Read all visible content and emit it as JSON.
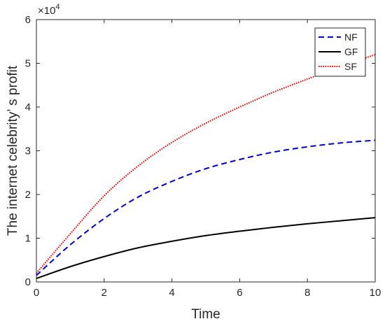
{
  "chart_data": {
    "type": "line",
    "title": "",
    "xlabel": "Time",
    "ylabel": "The internet celebrity’  s profit",
    "xlim": [
      0,
      10
    ],
    "ylim": [
      0,
      60000
    ],
    "x_ticks": [
      0,
      2,
      4,
      6,
      8,
      10
    ],
    "x_tick_labels": [
      "0",
      "2",
      "4",
      "6",
      "8",
      "10"
    ],
    "y_ticks": [
      0,
      10000,
      20000,
      30000,
      40000,
      50000,
      60000
    ],
    "y_tick_labels": [
      "0",
      "1",
      "2",
      "3",
      "4",
      "5",
      "6"
    ],
    "y_exponent_label": "×10",
    "y_exponent_power": "4",
    "grid": false,
    "legend_position": "top-right",
    "x": [
      0,
      1,
      2,
      3,
      4,
      5,
      6,
      7,
      8,
      9,
      10
    ],
    "series": [
      {
        "name": "NF",
        "color": "#0000cc",
        "style": "dashed",
        "values": [
          1500,
          8500,
          14500,
          19400,
          23000,
          25900,
          28000,
          29700,
          30900,
          31800,
          32400
        ]
      },
      {
        "name": "GF",
        "color": "#000000",
        "style": "solid",
        "values": [
          800,
          3500,
          5800,
          7800,
          9300,
          10600,
          11600,
          12500,
          13300,
          14000,
          14700
        ]
      },
      {
        "name": "SF",
        "color": "#dd0000",
        "style": "dotted",
        "values": [
          2000,
          11000,
          19700,
          26500,
          31900,
          36300,
          40000,
          43400,
          46400,
          49300,
          52000
        ]
      }
    ]
  }
}
